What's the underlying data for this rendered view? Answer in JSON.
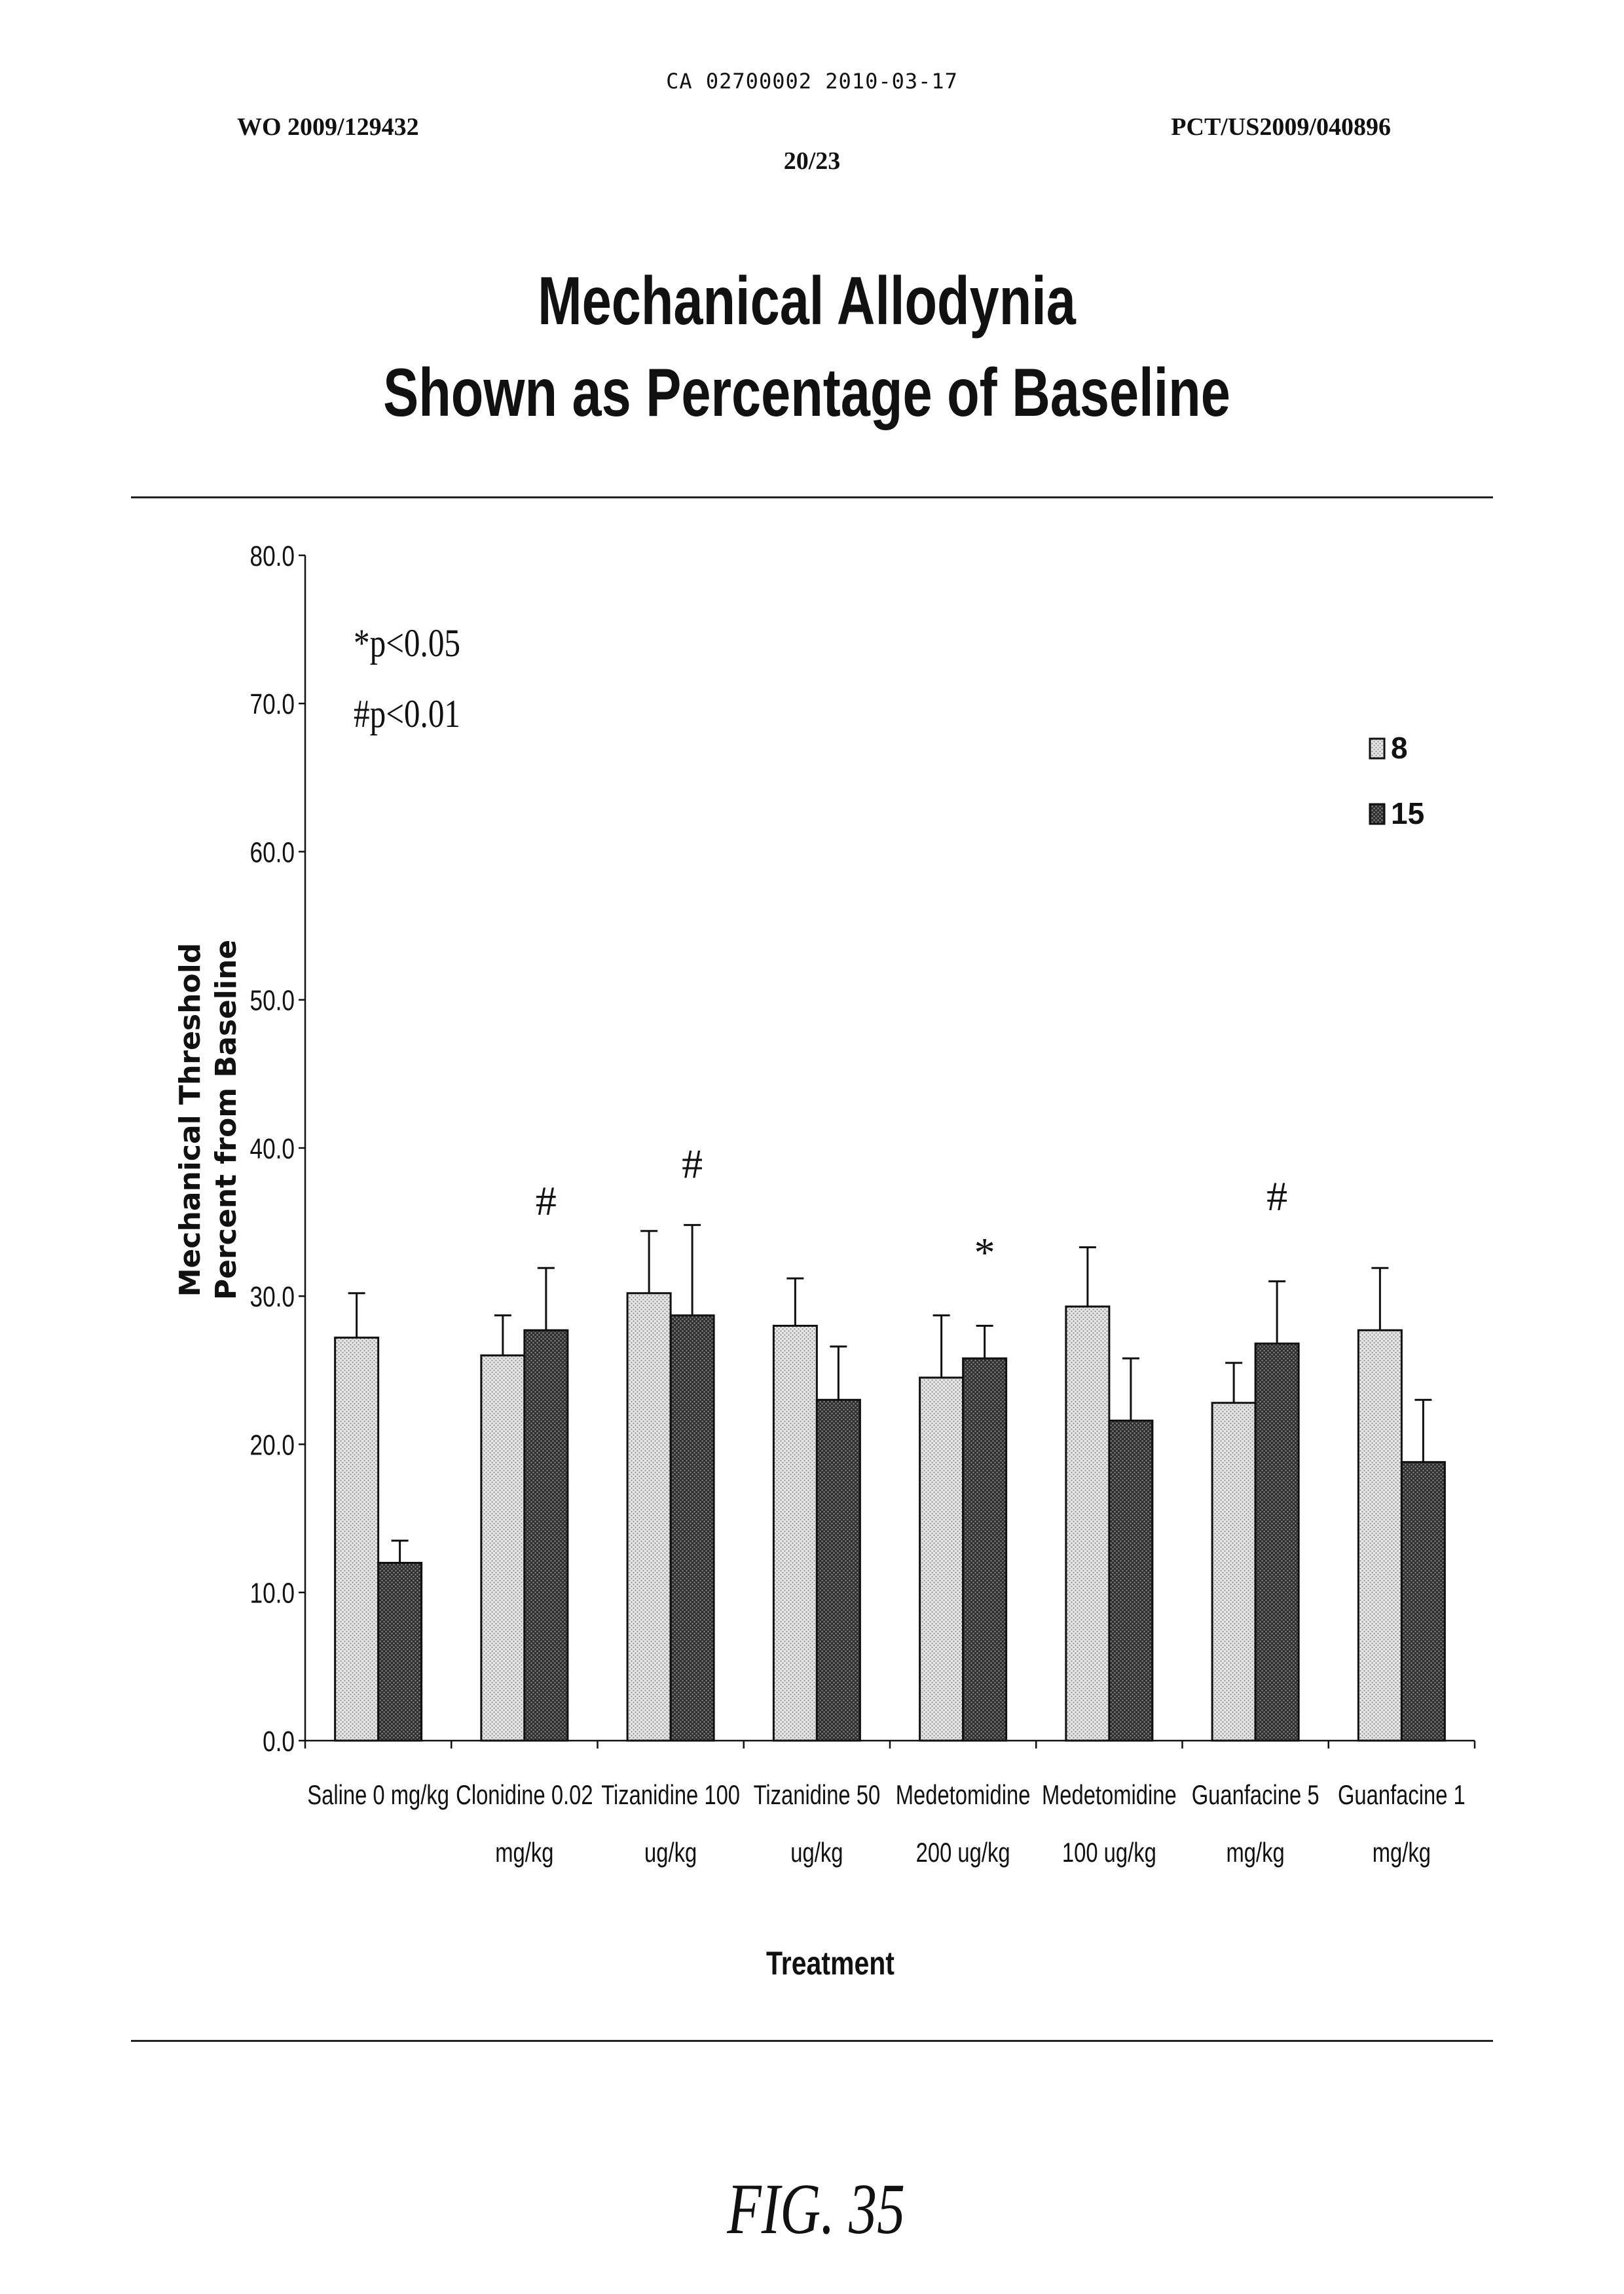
{
  "header": {
    "ca_number": "CA 02700002 2010-03-17",
    "wo_number": "WO 2009/129432",
    "pct_number": "PCT/US2009/040896",
    "page_number": "20/23"
  },
  "figure_label": "FIG. 35",
  "colors": {
    "series_8": "#d8d8d8",
    "series_15": "#4a4a4a",
    "ink": "#111111"
  },
  "chart_data": {
    "type": "bar",
    "title": [
      "Mechanical Allodynia",
      "Shown as Percentage of Baseline"
    ],
    "xlabel": "Treatment",
    "ylabel": [
      "Mechanical Threshold",
      "Percent from Baseline"
    ],
    "ylim": [
      0,
      80
    ],
    "yticks": [
      "0.0",
      "10.0",
      "20.0",
      "30.0",
      "40.0",
      "50.0",
      "60.0",
      "70.0",
      "80.0"
    ],
    "grid": false,
    "legend_position": "top-right",
    "categories": [
      [
        "Saline 0 mg/kg",
        ""
      ],
      [
        "Clonidine 0.02",
        "mg/kg"
      ],
      [
        "Tizanidine 100",
        "ug/kg"
      ],
      [
        "Tizanidine 50",
        "ug/kg"
      ],
      [
        "Medetomidine",
        "200 ug/kg"
      ],
      [
        "Medetomidine",
        "100 ug/kg"
      ],
      [
        "Guanfacine 5",
        "mg/kg"
      ],
      [
        "Guanfacine 1",
        "mg/kg"
      ]
    ],
    "series": [
      {
        "name": "8",
        "values": [
          27.2,
          26.0,
          30.2,
          28.0,
          24.5,
          29.3,
          22.8,
          27.7
        ],
        "errors": [
          3.0,
          2.7,
          4.2,
          3.2,
          4.2,
          4.0,
          2.7,
          4.2
        ]
      },
      {
        "name": "15",
        "values": [
          12.0,
          27.7,
          28.7,
          23.0,
          25.8,
          21.6,
          26.8,
          18.8
        ],
        "errors": [
          1.5,
          4.2,
          6.1,
          3.6,
          2.2,
          4.2,
          4.2,
          4.2
        ]
      }
    ],
    "significance_markers": [
      {
        "category_index": 1,
        "series_index": 1,
        "symbol": "#",
        "value": 35.5
      },
      {
        "category_index": 2,
        "series_index": 1,
        "symbol": "#",
        "value": 38.0
      },
      {
        "category_index": 4,
        "series_index": 1,
        "symbol": "*",
        "value": 32.0
      },
      {
        "category_index": 6,
        "series_index": 1,
        "symbol": "#",
        "value": 35.8
      }
    ],
    "annotations": [
      "*p<0.05",
      "#p<0.01"
    ]
  }
}
